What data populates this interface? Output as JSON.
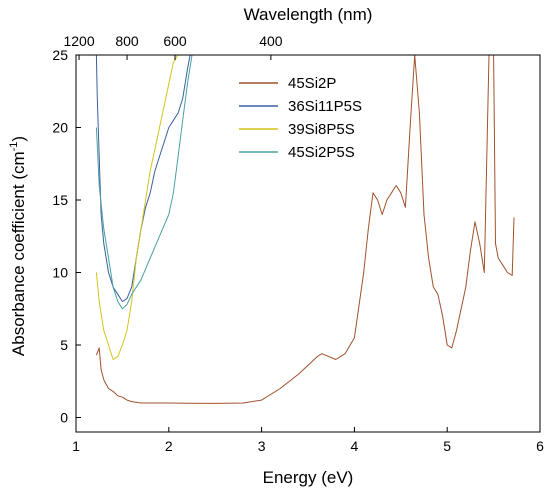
{
  "chart_data": {
    "type": "line",
    "xlabel": "Energy (eV)",
    "ylabel": "Absorbance coefficient (cm",
    "ylabel_sup": "-1",
    "ylabel_tail": ")",
    "top_axis_label": "Wavelength (nm)",
    "xlim": [
      1,
      6
    ],
    "ylim": [
      -1,
      25
    ],
    "x_ticks": [
      1,
      2,
      3,
      4,
      5,
      6
    ],
    "y_ticks": [
      0,
      5,
      10,
      15,
      20,
      25
    ],
    "top_ticks": [
      {
        "label": "1200",
        "energy": 1.033
      },
      {
        "label": "800",
        "energy": 1.55
      },
      {
        "label": "600",
        "energy": 2.067
      },
      {
        "label": "400",
        "energy": 3.1
      }
    ],
    "legend_position": "top-right",
    "series": [
      {
        "name": "45Si2P",
        "color": "#a0522d",
        "points": [
          [
            1.22,
            4.3
          ],
          [
            1.25,
            4.8
          ],
          [
            1.27,
            3.3
          ],
          [
            1.3,
            2.6
          ],
          [
            1.35,
            2.0
          ],
          [
            1.4,
            1.8
          ],
          [
            1.45,
            1.5
          ],
          [
            1.5,
            1.4
          ],
          [
            1.55,
            1.2
          ],
          [
            1.6,
            1.1
          ],
          [
            1.7,
            1.0
          ],
          [
            1.8,
            1.0
          ],
          [
            2.0,
            1.0
          ],
          [
            2.2,
            0.98
          ],
          [
            2.5,
            0.97
          ],
          [
            2.8,
            1.0
          ],
          [
            3.0,
            1.2
          ],
          [
            3.2,
            2.0
          ],
          [
            3.4,
            3.0
          ],
          [
            3.6,
            4.2
          ],
          [
            3.65,
            4.4
          ],
          [
            3.8,
            4.0
          ],
          [
            3.9,
            4.4
          ],
          [
            4.0,
            5.5
          ],
          [
            4.1,
            10.0
          ],
          [
            4.15,
            13.0
          ],
          [
            4.2,
            15.5
          ],
          [
            4.25,
            15.0
          ],
          [
            4.3,
            14.0
          ],
          [
            4.35,
            15.0
          ],
          [
            4.4,
            15.5
          ],
          [
            4.45,
            16.0
          ],
          [
            4.5,
            15.5
          ],
          [
            4.55,
            14.5
          ],
          [
            4.6,
            20.0
          ],
          [
            4.65,
            25.0
          ],
          [
            4.7,
            21.0
          ],
          [
            4.75,
            14.0
          ],
          [
            4.8,
            11.0
          ],
          [
            4.85,
            9.0
          ],
          [
            4.9,
            8.5
          ],
          [
            4.95,
            7.0
          ],
          [
            5.0,
            5.0
          ],
          [
            5.05,
            4.8
          ],
          [
            5.1,
            6.0
          ],
          [
            5.2,
            9.0
          ],
          [
            5.25,
            11.5
          ],
          [
            5.3,
            13.5
          ],
          [
            5.35,
            12.0
          ],
          [
            5.4,
            10.0
          ],
          [
            5.45,
            25.0
          ],
          [
            5.5,
            25.0
          ],
          [
            5.52,
            12.0
          ],
          [
            5.55,
            11.0
          ],
          [
            5.6,
            10.5
          ],
          [
            5.65,
            10.0
          ],
          [
            5.7,
            9.8
          ],
          [
            5.72,
            13.8
          ]
        ]
      },
      {
        "name": "36Si11P5S",
        "color": "#3a5fa0",
        "points": [
          [
            1.22,
            25.0
          ],
          [
            1.23,
            22.0
          ],
          [
            1.25,
            18.0
          ],
          [
            1.27,
            14.0
          ],
          [
            1.3,
            12.0
          ],
          [
            1.35,
            10.0
          ],
          [
            1.4,
            9.0
          ],
          [
            1.45,
            8.5
          ],
          [
            1.5,
            8.0
          ],
          [
            1.55,
            8.2
          ],
          [
            1.6,
            9.0
          ],
          [
            1.65,
            11.0
          ],
          [
            1.7,
            13.0
          ],
          [
            1.75,
            14.5
          ],
          [
            1.8,
            15.5
          ],
          [
            1.85,
            17.0
          ],
          [
            1.9,
            18.0
          ],
          [
            1.95,
            19.0
          ],
          [
            2.0,
            20.0
          ],
          [
            2.05,
            20.5
          ],
          [
            2.1,
            21.0
          ],
          [
            2.15,
            22.0
          ],
          [
            2.2,
            24.0
          ],
          [
            2.23,
            25.0
          ]
        ]
      },
      {
        "name": "39Si8P5S",
        "color": "#d4c41a",
        "points": [
          [
            1.22,
            10.0
          ],
          [
            1.25,
            8.0
          ],
          [
            1.3,
            6.0
          ],
          [
            1.35,
            5.0
          ],
          [
            1.4,
            4.0
          ],
          [
            1.45,
            4.2
          ],
          [
            1.5,
            5.0
          ],
          [
            1.55,
            6.0
          ],
          [
            1.6,
            8.0
          ],
          [
            1.65,
            11.0
          ],
          [
            1.7,
            13.0
          ],
          [
            1.75,
            15.0
          ],
          [
            1.8,
            17.0
          ],
          [
            1.85,
            18.5
          ],
          [
            1.9,
            20.0
          ],
          [
            1.95,
            21.5
          ],
          [
            2.0,
            23.0
          ],
          [
            2.05,
            24.5
          ],
          [
            2.1,
            25.0
          ]
        ]
      },
      {
        "name": "45Si2P5S",
        "color": "#4aa0a0",
        "points": [
          [
            1.22,
            20.0
          ],
          [
            1.25,
            16.0
          ],
          [
            1.3,
            13.0
          ],
          [
            1.35,
            11.0
          ],
          [
            1.4,
            9.0
          ],
          [
            1.45,
            8.0
          ],
          [
            1.5,
            7.5
          ],
          [
            1.55,
            7.8
          ],
          [
            1.6,
            8.5
          ],
          [
            1.7,
            9.5
          ],
          [
            1.8,
            11.0
          ],
          [
            1.9,
            12.5
          ],
          [
            2.0,
            14.0
          ],
          [
            2.05,
            15.5
          ],
          [
            2.1,
            18.0
          ],
          [
            2.15,
            20.5
          ],
          [
            2.2,
            23.0
          ],
          [
            2.25,
            25.0
          ]
        ]
      }
    ]
  }
}
